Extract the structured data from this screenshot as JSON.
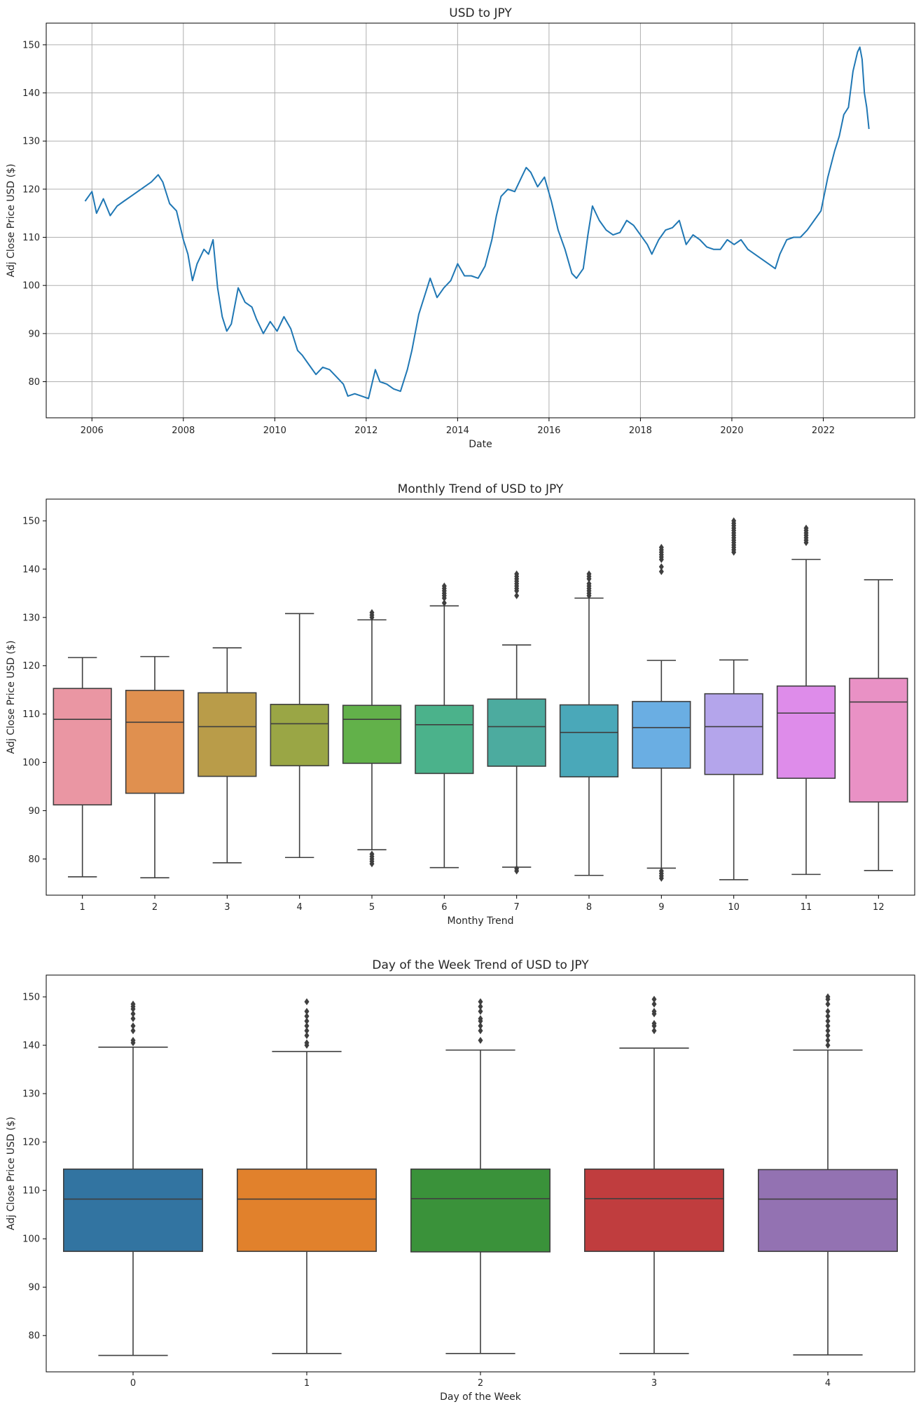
{
  "chart_data": [
    {
      "type": "line",
      "title": "USD to JPY",
      "xlabel": "Date",
      "ylabel": "Adj Close Price USD ($)",
      "x_ticks": [
        "2006",
        "2008",
        "2010",
        "2012",
        "2014",
        "2016",
        "2018",
        "2020",
        "2022"
      ],
      "y_ticks": [
        "80",
        "90",
        "100",
        "110",
        "120",
        "130",
        "140",
        "150"
      ],
      "xlim": [
        2005.0,
        2024.0
      ],
      "ylim": [
        72.5,
        154.5
      ],
      "grid": true,
      "color": "#1f77b4",
      "x": [
        2005.85,
        2006.0,
        2006.1,
        2006.25,
        2006.4,
        2006.55,
        2006.7,
        2006.85,
        2007.0,
        2007.15,
        2007.3,
        2007.45,
        2007.55,
        2007.7,
        2007.85,
        2008.0,
        2008.1,
        2008.2,
        2008.3,
        2008.45,
        2008.55,
        2008.65,
        2008.75,
        2008.85,
        2008.95,
        2009.05,
        2009.2,
        2009.35,
        2009.5,
        2009.6,
        2009.75,
        2009.9,
        2010.05,
        2010.2,
        2010.35,
        2010.5,
        2010.6,
        2010.75,
        2010.9,
        2011.05,
        2011.2,
        2011.35,
        2011.5,
        2011.6,
        2011.75,
        2011.9,
        2012.05,
        2012.2,
        2012.3,
        2012.45,
        2012.6,
        2012.75,
        2012.9,
        2013.0,
        2013.15,
        2013.3,
        2013.4,
        2013.55,
        2013.7,
        2013.85,
        2014.0,
        2014.15,
        2014.3,
        2014.45,
        2014.6,
        2014.75,
        2014.85,
        2014.95,
        2015.1,
        2015.25,
        2015.4,
        2015.5,
        2015.6,
        2015.75,
        2015.9,
        2016.05,
        2016.2,
        2016.35,
        2016.5,
        2016.6,
        2016.75,
        2016.85,
        2016.95,
        2017.1,
        2017.25,
        2017.4,
        2017.55,
        2017.7,
        2017.85,
        2018.0,
        2018.15,
        2018.25,
        2018.4,
        2018.55,
        2018.7,
        2018.85,
        2019.0,
        2019.15,
        2019.3,
        2019.45,
        2019.6,
        2019.75,
        2019.9,
        2020.05,
        2020.2,
        2020.35,
        2020.5,
        2020.65,
        2020.8,
        2020.95,
        2021.05,
        2021.2,
        2021.35,
        2021.5,
        2021.65,
        2021.8,
        2021.95,
        2022.1,
        2022.25,
        2022.35,
        2022.45,
        2022.55,
        2022.65,
        2022.75,
        2022.8,
        2022.85,
        2022.9,
        2022.95,
        2023.0
      ],
      "y": [
        117.5,
        119.5,
        115.0,
        118.0,
        114.5,
        116.5,
        117.5,
        118.5,
        119.5,
        120.5,
        121.5,
        123.0,
        121.5,
        117.0,
        115.5,
        109.5,
        106.5,
        101.0,
        104.5,
        107.5,
        106.5,
        109.5,
        99.5,
        93.5,
        90.5,
        92.0,
        99.5,
        96.5,
        95.5,
        93.0,
        90.0,
        92.5,
        90.5,
        93.5,
        91.0,
        86.5,
        85.5,
        83.5,
        81.5,
        83.0,
        82.5,
        81.0,
        79.5,
        77.0,
        77.5,
        77.0,
        76.5,
        82.5,
        80.0,
        79.5,
        78.5,
        78.0,
        82.5,
        86.5,
        94.0,
        98.5,
        101.5,
        97.5,
        99.5,
        101.0,
        104.5,
        102.0,
        102.0,
        101.5,
        104.0,
        109.5,
        114.5,
        118.5,
        120.0,
        119.5,
        122.5,
        124.5,
        123.5,
        120.5,
        122.5,
        117.5,
        111.5,
        107.5,
        102.5,
        101.5,
        103.5,
        110.5,
        116.5,
        113.5,
        111.5,
        110.5,
        111.0,
        113.5,
        112.5,
        110.5,
        108.5,
        106.5,
        109.5,
        111.5,
        112.0,
        113.5,
        108.5,
        110.5,
        109.5,
        108.0,
        107.5,
        107.5,
        109.5,
        108.5,
        109.5,
        107.5,
        106.5,
        105.5,
        104.5,
        103.5,
        106.5,
        109.5,
        110.0,
        110.0,
        111.5,
        113.5,
        115.5,
        122.5,
        128.0,
        131.0,
        135.5,
        137.0,
        144.5,
        148.5,
        149.5,
        147.0,
        140.0,
        137.0,
        132.5
      ]
    },
    {
      "type": "box",
      "title": "Monthly Trend of USD to JPY",
      "xlabel": "Monthy Trend",
      "ylabel": "Adj Close Price USD ($)",
      "categories": [
        "1",
        "2",
        "3",
        "4",
        "5",
        "6",
        "7",
        "8",
        "9",
        "10",
        "11",
        "12"
      ],
      "y_ticks": [
        "80",
        "90",
        "100",
        "110",
        "120",
        "130",
        "140",
        "150"
      ],
      "ylim": [
        72.5,
        154.5
      ],
      "colors": [
        "#ea96a3",
        "#e0904f",
        "#b99c49",
        "#9aa645",
        "#62b14a",
        "#4bb28b",
        "#4cab9f",
        "#4aa8b9",
        "#6aaee3",
        "#b4a5eb",
        "#de8cea",
        "#e991c5"
      ],
      "boxes": [
        {
          "whislo": 76.3,
          "q1": 91.2,
          "med": 108.9,
          "q3": 115.3,
          "whishi": 121.7,
          "fliers": []
        },
        {
          "whislo": 76.1,
          "q1": 93.6,
          "med": 108.3,
          "q3": 114.9,
          "whishi": 121.9,
          "fliers": []
        },
        {
          "whislo": 79.2,
          "q1": 97.1,
          "med": 107.4,
          "q3": 114.4,
          "whishi": 123.7,
          "fliers": []
        },
        {
          "whislo": 80.3,
          "q1": 99.3,
          "med": 108.0,
          "q3": 112.0,
          "whishi": 130.8,
          "fliers": []
        },
        {
          "whislo": 81.9,
          "q1": 99.8,
          "med": 108.9,
          "q3": 111.8,
          "whishi": 129.5,
          "fliers": [
            79.0,
            79.5,
            80.0,
            80.5,
            81.0,
            130.0,
            130.5,
            131.0
          ]
        },
        {
          "whislo": 78.2,
          "q1": 97.7,
          "med": 107.8,
          "q3": 111.8,
          "whishi": 132.4,
          "fliers": [
            133.0,
            134.0,
            134.5,
            135.0,
            135.5,
            136.0,
            136.5
          ]
        },
        {
          "whislo": 78.3,
          "q1": 99.2,
          "med": 107.4,
          "q3": 113.1,
          "whishi": 124.3,
          "fliers": [
            77.5,
            78.0,
            134.5,
            135.5,
            136.0,
            136.5,
            137.0,
            137.5,
            138.0,
            138.5,
            139.0
          ]
        },
        {
          "whislo": 76.6,
          "q1": 97.0,
          "med": 106.2,
          "q3": 111.9,
          "whishi": 134.0,
          "fliers": [
            134.5,
            135.0,
            135.5,
            136.0,
            136.5,
            137.0,
            138.0,
            138.5,
            139.0
          ]
        },
        {
          "whislo": 78.1,
          "q1": 98.8,
          "med": 107.2,
          "q3": 112.6,
          "whishi": 121.1,
          "fliers": [
            76.0,
            76.5,
            77.0,
            77.5,
            139.5,
            140.5,
            142.0,
            142.5,
            143.0,
            143.5,
            144.0,
            144.5
          ]
        },
        {
          "whislo": 75.7,
          "q1": 97.5,
          "med": 107.4,
          "q3": 114.2,
          "whishi": 121.2,
          "fliers": [
            143.5,
            144.0,
            144.5,
            145.0,
            145.5,
            146.0,
            146.5,
            147.0,
            147.5,
            148.0,
            148.5,
            149.0,
            149.5,
            150.0
          ]
        },
        {
          "whislo": 76.8,
          "q1": 96.7,
          "med": 110.2,
          "q3": 115.8,
          "whishi": 142.0,
          "fliers": [
            145.5,
            146.0,
            146.5,
            147.0,
            147.5,
            148.0,
            148.5
          ]
        },
        {
          "whislo": 77.6,
          "q1": 91.8,
          "med": 112.5,
          "q3": 117.4,
          "whishi": 137.8,
          "fliers": []
        }
      ]
    },
    {
      "type": "box",
      "title": "Day of the Week Trend of USD to JPY",
      "xlabel": "Day of the Week",
      "ylabel": "Adj Close Price USD ($)",
      "categories": [
        "0",
        "1",
        "2",
        "3",
        "4"
      ],
      "y_ticks": [
        "80",
        "90",
        "100",
        "110",
        "120",
        "130",
        "140",
        "150"
      ],
      "ylim": [
        72.5,
        154.5
      ],
      "colors": [
        "#3274a1",
        "#e1812c",
        "#3a923a",
        "#c03d3e",
        "#9372b2"
      ],
      "boxes": [
        {
          "whislo": 75.9,
          "q1": 97.4,
          "med": 108.2,
          "q3": 114.4,
          "whishi": 139.6,
          "fliers": [
            140.5,
            141.0,
            143.0,
            144.0,
            145.5,
            146.5,
            147.5,
            148.0,
            148.5
          ]
        },
        {
          "whislo": 76.3,
          "q1": 97.4,
          "med": 108.2,
          "q3": 114.4,
          "whishi": 138.7,
          "fliers": [
            140.0,
            140.5,
            142.0,
            143.0,
            144.0,
            145.0,
            146.0,
            147.0,
            149.0
          ]
        },
        {
          "whislo": 76.3,
          "q1": 97.3,
          "med": 108.3,
          "q3": 114.4,
          "whishi": 139.0,
          "fliers": [
            141.0,
            143.0,
            144.0,
            145.0,
            145.5,
            147.0,
            148.0,
            149.0
          ]
        },
        {
          "whislo": 76.3,
          "q1": 97.4,
          "med": 108.3,
          "q3": 114.4,
          "whishi": 139.4,
          "fliers": [
            143.0,
            144.0,
            144.5,
            146.5,
            147.0,
            148.5,
            149.5
          ]
        },
        {
          "whislo": 76.0,
          "q1": 97.4,
          "med": 108.2,
          "q3": 114.3,
          "whishi": 139.0,
          "fliers": [
            140.0,
            141.0,
            142.0,
            143.0,
            144.0,
            145.0,
            146.0,
            147.0,
            148.5,
            149.5,
            150.0
          ]
        }
      ]
    }
  ]
}
